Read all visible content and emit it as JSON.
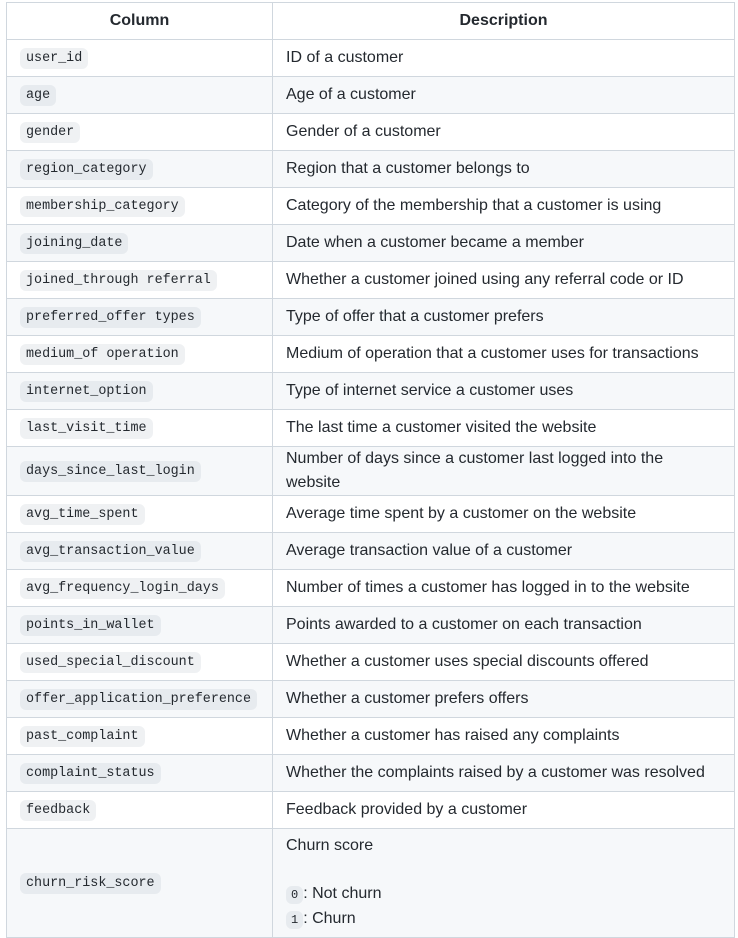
{
  "header": {
    "column": "Column",
    "description": "Description"
  },
  "rows": [
    {
      "name": "user_id",
      "desc": "ID of a customer"
    },
    {
      "name": "age",
      "desc": "Age of a customer"
    },
    {
      "name": "gender",
      "desc": "Gender of a customer"
    },
    {
      "name": "region_category",
      "desc": "Region that a customer belongs to"
    },
    {
      "name": "membership_category",
      "desc": "Category of the membership that a customer is using"
    },
    {
      "name": "joining_date",
      "desc": "Date when a customer became a member"
    },
    {
      "name": "joined_through referral",
      "desc": "Whether a customer joined using any referral code or ID"
    },
    {
      "name": "preferred_offer types",
      "desc": "Type of offer that a customer prefers"
    },
    {
      "name": "medium_of operation",
      "desc": "Medium of operation that a customer uses for transactions"
    },
    {
      "name": "internet_option",
      "desc": "Type of internet service a customer uses"
    },
    {
      "name": "last_visit_time",
      "desc": "The last time a customer visited the website"
    },
    {
      "name": "days_since_last_login",
      "desc": "Number of days since a customer last logged into the website"
    },
    {
      "name": "avg_time_spent",
      "desc": "Average time spent by a customer on the website"
    },
    {
      "name": "avg_transaction_value",
      "desc": "Average transaction value of a customer"
    },
    {
      "name": "avg_frequency_login_days",
      "desc": "Number of times a customer has logged in to the website"
    },
    {
      "name": "points_in_wallet",
      "desc": "Points awarded to a customer on each transaction"
    },
    {
      "name": "used_special_discount",
      "desc": "Whether a customer uses special discounts offered"
    },
    {
      "name": "offer_application_preference",
      "desc": "Whether a customer prefers offers"
    },
    {
      "name": "past_complaint",
      "desc": "Whether a customer has raised any complaints"
    },
    {
      "name": "complaint_status",
      "desc": "Whether the complaints raised by a customer was resolved"
    },
    {
      "name": "feedback",
      "desc": "Feedback provided by a customer"
    }
  ],
  "last_row": {
    "name": "churn_risk_score",
    "desc_title": "Churn score",
    "items": [
      {
        "code": "0",
        "text": ": Not churn"
      },
      {
        "code": "1",
        "text": ": Churn"
      }
    ]
  }
}
